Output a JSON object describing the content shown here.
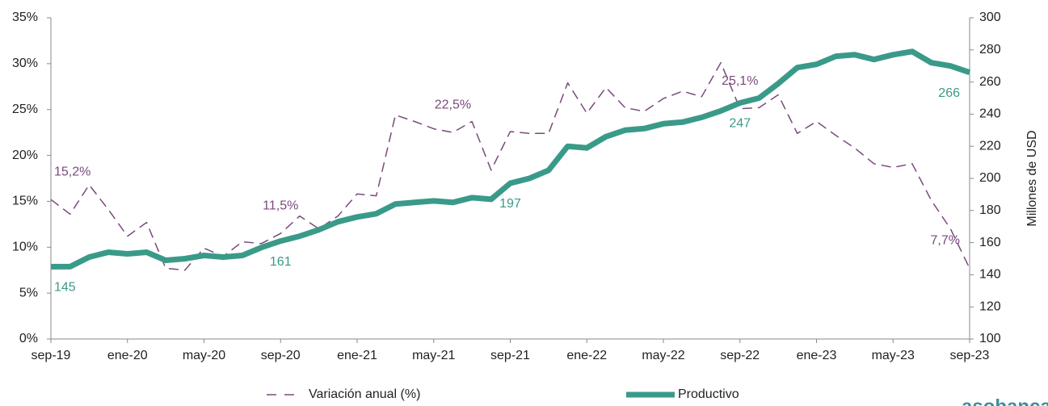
{
  "chart_data": {
    "type": "line",
    "categories": [
      "sep-19",
      null,
      null,
      null,
      "ene-20",
      null,
      null,
      null,
      "may-20",
      null,
      null,
      null,
      "sep-20",
      null,
      null,
      null,
      "ene-21",
      null,
      null,
      null,
      "may-21",
      null,
      null,
      null,
      "sep-21",
      null,
      null,
      null,
      "ene-22",
      null,
      null,
      null,
      "may-22",
      null,
      null,
      null,
      "sep-22",
      null,
      null,
      null,
      "ene-23",
      null,
      null,
      null,
      "may-23",
      null,
      null,
      null,
      "sep-23"
    ],
    "series": [
      {
        "name": "Variación anual (%)",
        "color": "#7a4a7c",
        "style": "dashed",
        "axis": "y",
        "values": [
          15.2,
          13.6,
          16.8,
          14.1,
          11.2,
          12.7,
          7.7,
          7.5,
          9.9,
          9.0,
          10.6,
          10.4,
          11.5,
          13.4,
          12.0,
          13.4,
          15.8,
          15.6,
          24.4,
          23.7,
          22.9,
          22.5,
          23.7,
          18.4,
          22.6,
          22.4,
          22.4,
          27.9,
          24.6,
          27.4,
          25.2,
          24.8,
          26.2,
          27.0,
          26.4,
          30.1,
          25.1,
          25.2,
          26.6,
          22.4,
          23.7,
          22.2,
          20.8,
          19.1,
          18.7,
          19.1,
          15.1,
          12.0,
          7.7
        ],
        "value_labels": [
          "15,2%",
          null,
          null,
          null,
          null,
          null,
          null,
          null,
          null,
          null,
          null,
          null,
          "11,5%",
          null,
          null,
          null,
          null,
          null,
          null,
          null,
          null,
          "22,5%",
          null,
          null,
          null,
          null,
          null,
          null,
          null,
          null,
          null,
          null,
          null,
          null,
          null,
          null,
          "25,1%",
          null,
          null,
          null,
          null,
          null,
          null,
          null,
          null,
          null,
          null,
          null,
          "7,7%"
        ]
      },
      {
        "name": "Productivo",
        "color": "#3a9a89",
        "style": "solid",
        "axis": "y2",
        "values": [
          145,
          145,
          151,
          154,
          153,
          154,
          149,
          150,
          152,
          151,
          152,
          157,
          161,
          164,
          168,
          173,
          176,
          178,
          184,
          185,
          186,
          185,
          188,
          187,
          197,
          200,
          205,
          220,
          219,
          226,
          230,
          231,
          234,
          235,
          238,
          242,
          247,
          250,
          259,
          269,
          271,
          276,
          277,
          274,
          277,
          279,
          272,
          270,
          266
        ],
        "value_labels": [
          "145",
          null,
          null,
          null,
          null,
          null,
          null,
          null,
          null,
          null,
          null,
          null,
          "161",
          null,
          null,
          null,
          null,
          null,
          null,
          null,
          null,
          null,
          null,
          null,
          "197",
          null,
          null,
          null,
          null,
          null,
          null,
          null,
          null,
          null,
          null,
          null,
          "247",
          null,
          null,
          null,
          null,
          null,
          null,
          null,
          null,
          null,
          null,
          null,
          "266"
        ]
      }
    ],
    "ylim": [
      0,
      35
    ],
    "yticks": [
      {
        "value": 0,
        "label": "0%"
      },
      {
        "value": 5,
        "label": "5%"
      },
      {
        "value": 10,
        "label": "10%"
      },
      {
        "value": 15,
        "label": "15%"
      },
      {
        "value": 20,
        "label": "20%"
      },
      {
        "value": 25,
        "label": "25%"
      },
      {
        "value": 30,
        "label": "30%"
      },
      {
        "value": 35,
        "label": "35%"
      }
    ],
    "y2lim": [
      100,
      300
    ],
    "y2ticks": [
      100,
      120,
      140,
      160,
      180,
      200,
      220,
      240,
      260,
      280,
      300
    ],
    "y2label": "Millones de USD",
    "legend": "bottom",
    "logo": "asobancaria"
  }
}
